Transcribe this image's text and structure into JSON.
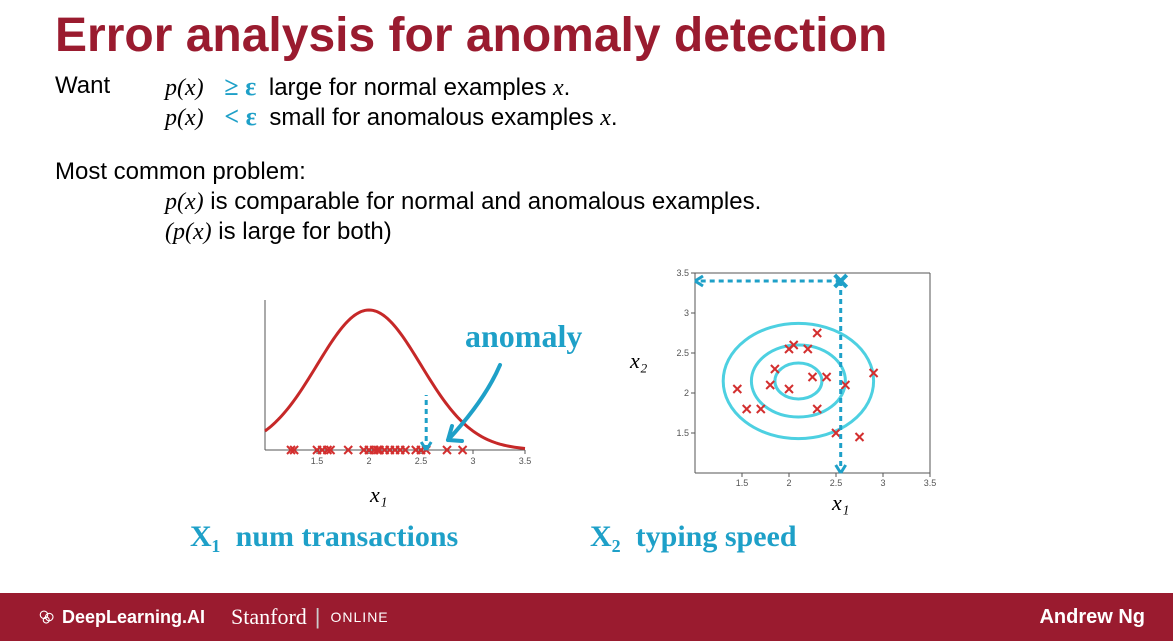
{
  "colors": {
    "title": "#9a1b2f",
    "text": "#000000",
    "handwritten": "#1ea0c8",
    "curve": "#c62828",
    "marker": "#d32f2f",
    "axis": "#555555",
    "footer_bg": "#9a1b2f",
    "footer_text": "#ffffff"
  },
  "title": "Error analysis for anomaly detection",
  "want_label": "Want",
  "line1": {
    "px": "p(x)",
    "symbol": "≥ ε",
    "rest": " large for normal examples ",
    "xvar": "x",
    "dot": "."
  },
  "line2": {
    "px": "p(x)",
    "symbol": "< ε",
    "rest": " small for anomalous examples ",
    "xvar": "x",
    "dot": "."
  },
  "problem_heading": "Most common problem:",
  "problem_line1a": "p(x)",
  "problem_line1b": " is comparable for normal and anomalous examples.",
  "problem_line2a": "(p(x)",
  "problem_line2b": " is large for both)",
  "anomaly_label": "anomaly",
  "left_chart": {
    "type": "bell-curve-1d",
    "x_axis_label": "x₁",
    "xlim": [
      1.0,
      3.5
    ],
    "xtick_step": 0.5,
    "xtick_labels": [
      "1.5",
      "2",
      "2.5",
      "3",
      "3.5"
    ],
    "curve_color": "#c62828",
    "curve_width": 3,
    "marker_color": "#d32f2f",
    "marker_style": "x",
    "data_points_x": [
      1.25,
      1.28,
      1.5,
      1.55,
      1.6,
      1.63,
      1.8,
      1.95,
      2.0,
      2.05,
      2.08,
      2.1,
      2.15,
      2.2,
      2.25,
      2.3,
      2.35,
      2.45,
      2.5,
      2.55,
      2.75,
      2.9
    ],
    "anomaly_x": 2.55,
    "arrow_color": "#1ea0c8"
  },
  "right_chart": {
    "type": "scatter-contour-2d",
    "x_axis_label": "x₁",
    "y_axis_label": "x₂",
    "xlim": [
      1.0,
      3.5
    ],
    "ylim": [
      1.0,
      3.5
    ],
    "tick_step": 0.5,
    "xtick_labels": [
      "1.5",
      "2",
      "2.5",
      "3",
      "3.5"
    ],
    "ytick_labels": [
      "1.5",
      "2",
      "2.5",
      "3",
      "3.5"
    ],
    "contour_color": "#4dd0e1",
    "contour_center": [
      2.1,
      2.15
    ],
    "contour_radii": [
      0.25,
      0.5,
      0.8
    ],
    "contour_width": 3,
    "marker_color": "#d32f2f",
    "marker_style": "x",
    "points": [
      [
        1.45,
        2.05
      ],
      [
        1.55,
        1.8
      ],
      [
        1.7,
        1.8
      ],
      [
        1.8,
        2.1
      ],
      [
        1.85,
        2.3
      ],
      [
        2.0,
        2.05
      ],
      [
        2.0,
        2.55
      ],
      [
        2.05,
        2.6
      ],
      [
        2.2,
        2.55
      ],
      [
        2.25,
        2.2
      ],
      [
        2.3,
        2.75
      ],
      [
        2.4,
        2.2
      ],
      [
        2.5,
        1.5
      ],
      [
        2.6,
        2.1
      ],
      [
        2.75,
        1.45
      ],
      [
        2.9,
        2.25
      ],
      [
        2.3,
        1.8
      ]
    ],
    "anomaly_point": [
      2.55,
      3.4
    ],
    "guide_color": "#1ea0c8"
  },
  "bottom_x1": "X₁",
  "bottom_x1_text": "num transactions",
  "bottom_x2": "X₂",
  "bottom_x2_text": "typing speed",
  "footer": {
    "brand1": "DeepLearning.AI",
    "brand2": "Stanford",
    "brand2_sub": "ONLINE",
    "author": "Andrew Ng"
  }
}
